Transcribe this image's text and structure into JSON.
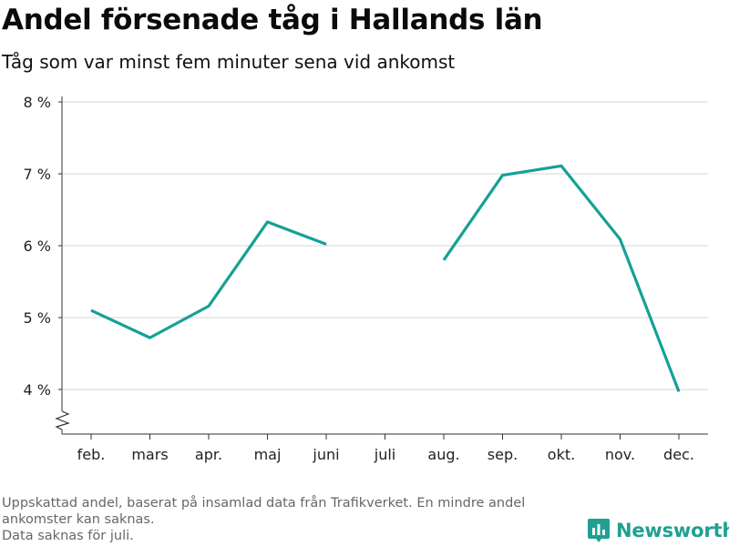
{
  "header": {
    "title": "Andel försenade tåg i Hallands län",
    "subtitle": "Tåg som var minst fem minuter sena vid ankomst"
  },
  "chart_data": {
    "type": "line",
    "categories": [
      "feb.",
      "mars",
      "apr.",
      "maj",
      "juni",
      "juli",
      "aug.",
      "sep.",
      "okt.",
      "nov.",
      "dec."
    ],
    "series": [
      {
        "values": [
          5.1,
          4.72,
          5.16,
          6.33,
          6.02,
          null,
          5.8,
          6.98,
          7.11,
          6.09,
          3.97
        ]
      }
    ],
    "yticks": [
      4,
      5,
      6,
      7,
      8
    ],
    "ytick_labels": [
      "4 %",
      "5 %",
      "6 %",
      "7 %",
      "8 %"
    ],
    "ylim": [
      3.55,
      8.1
    ],
    "ylabel": "",
    "xlabel": "",
    "grid": true,
    "axis_break": true,
    "line_color": "#16a096"
  },
  "footnote": {
    "lines": [
      "Uppskattad andel, baserat på insamlad data från Trafikverket. En mindre andel",
      "ankomster kan saknas.",
      "Data saknas för juli."
    ]
  },
  "brand": {
    "name": "Newsworthy",
    "icon": "newsworthy-logo-icon",
    "color": "#20a093"
  }
}
